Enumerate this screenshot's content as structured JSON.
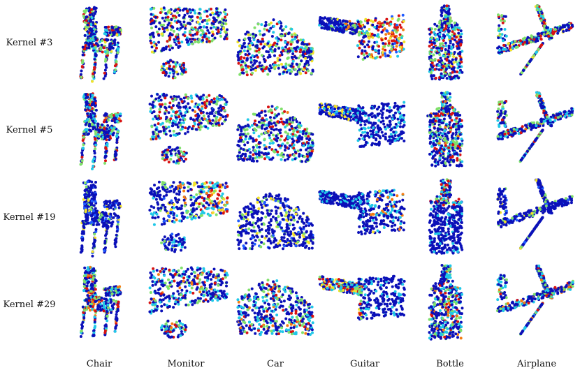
{
  "figure": {
    "row_labels": [
      "Kernel #3",
      "Kernel #5",
      "Kernel #19",
      "Kernel #29"
    ],
    "column_labels": [
      "Chair",
      "Monitor",
      "Car",
      "Guitar",
      "Bottle",
      "Airplane"
    ],
    "colormap": [
      "#0b10b8",
      "#1f5bff",
      "#20c8e8",
      "#7fe06a",
      "#f2e22a",
      "#f47c12",
      "#d81212"
    ],
    "shapes": [
      "chair-point-cloud",
      "monitor-point-cloud",
      "car-point-cloud",
      "guitar-point-cloud",
      "bottle-point-cloud",
      "airplane-point-cloud"
    ]
  }
}
